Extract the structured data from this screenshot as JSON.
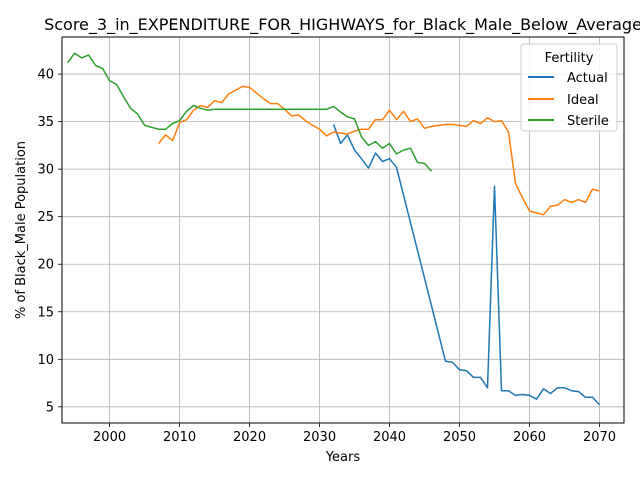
{
  "chart_data": {
    "type": "line",
    "title": "Score_3_in_EXPENDITURE_FOR_HIGHWAYS_for_Black_Male_Below_Average",
    "xlabel": "Years",
    "ylabel": "% of Black_Male Population",
    "xlim": [
      1993.2,
      2073.5
    ],
    "ylim": [
      3.3,
      43.9
    ],
    "xticks": [
      2000,
      2010,
      2020,
      2030,
      2040,
      2050,
      2060,
      2070
    ],
    "yticks": [
      5,
      10,
      15,
      20,
      25,
      30,
      35,
      40
    ],
    "grid": true,
    "legend": {
      "title": "Fertility",
      "placement": "top-right"
    },
    "colors": {
      "Actual": "#1f77b4",
      "Ideal": "#ff7f0e",
      "Sterile": "#2ca02c"
    },
    "series": [
      {
        "name": "Actual",
        "points": [
          [
            2032,
            34.7
          ],
          [
            2033,
            32.7
          ],
          [
            2034,
            33.6
          ],
          [
            2035,
            32.0
          ],
          [
            2036,
            31.1
          ],
          [
            2037,
            30.1
          ],
          [
            2038,
            31.7
          ],
          [
            2039,
            30.8
          ],
          [
            2040,
            31.1
          ],
          [
            2041,
            30.2
          ],
          [
            2048,
            9.8
          ],
          [
            2049,
            9.7
          ],
          [
            2050,
            8.9
          ],
          [
            2051,
            8.8
          ],
          [
            2052,
            8.1
          ],
          [
            2053,
            8.1
          ],
          [
            2054,
            7.0
          ],
          [
            2055,
            28.2
          ],
          [
            2056,
            6.7
          ],
          [
            2057,
            6.7
          ],
          [
            2058,
            6.2
          ],
          [
            2059,
            6.3
          ],
          [
            2060,
            6.2
          ],
          [
            2061,
            5.8
          ],
          [
            2062,
            6.9
          ],
          [
            2063,
            6.4
          ],
          [
            2064,
            7.0
          ],
          [
            2065,
            7.0
          ],
          [
            2066,
            6.7
          ],
          [
            2067,
            6.6
          ],
          [
            2068,
            6.0
          ],
          [
            2069,
            6.0
          ],
          [
            2070,
            5.2
          ]
        ]
      },
      {
        "name": "Ideal",
        "points": [
          [
            2007,
            32.7
          ],
          [
            2008,
            33.6
          ],
          [
            2009,
            33.0
          ],
          [
            2010,
            34.9
          ],
          [
            2011,
            35.2
          ],
          [
            2012,
            36.2
          ],
          [
            2013,
            36.7
          ],
          [
            2014,
            36.5
          ],
          [
            2015,
            37.2
          ],
          [
            2016,
            37.0
          ],
          [
            2017,
            37.9
          ],
          [
            2018,
            38.3
          ],
          [
            2019,
            38.7
          ],
          [
            2020,
            38.6
          ],
          [
            2021,
            38.0
          ],
          [
            2022,
            37.4
          ],
          [
            2023,
            36.9
          ],
          [
            2024,
            36.9
          ],
          [
            2025,
            36.3
          ],
          [
            2026,
            35.6
          ],
          [
            2027,
            35.7
          ],
          [
            2028,
            35.1
          ],
          [
            2029,
            34.6
          ],
          [
            2030,
            34.2
          ],
          [
            2031,
            33.5
          ],
          [
            2032,
            33.9
          ],
          [
            2033,
            33.8
          ],
          [
            2034,
            33.7
          ],
          [
            2035,
            34.0
          ],
          [
            2036,
            34.2
          ],
          [
            2037,
            34.2
          ],
          [
            2038,
            35.2
          ],
          [
            2039,
            35.2
          ],
          [
            2040,
            36.2
          ],
          [
            2041,
            35.2
          ],
          [
            2042,
            36.1
          ],
          [
            2043,
            35.0
          ],
          [
            2044,
            35.3
          ],
          [
            2045,
            34.3
          ],
          [
            2046,
            34.5
          ],
          [
            2047,
            34.6
          ],
          [
            2048,
            34.7
          ],
          [
            2049,
            34.7
          ],
          [
            2050,
            34.6
          ],
          [
            2051,
            34.5
          ],
          [
            2052,
            35.1
          ],
          [
            2053,
            34.8
          ],
          [
            2054,
            35.4
          ],
          [
            2055,
            35.0
          ],
          [
            2056,
            35.1
          ],
          [
            2057,
            33.9
          ],
          [
            2058,
            28.5
          ],
          [
            2059,
            27.0
          ],
          [
            2060,
            25.6
          ],
          [
            2061,
            25.4
          ],
          [
            2062,
            25.2
          ],
          [
            2063,
            26.1
          ],
          [
            2064,
            26.2
          ],
          [
            2065,
            26.8
          ],
          [
            2066,
            26.5
          ],
          [
            2067,
            26.8
          ],
          [
            2068,
            26.5
          ],
          [
            2069,
            27.9
          ],
          [
            2070,
            27.7
          ]
        ]
      },
      {
        "name": "Sterile",
        "points": [
          [
            1994,
            41.2
          ],
          [
            1995,
            42.2
          ],
          [
            1996,
            41.7
          ],
          [
            1997,
            42.0
          ],
          [
            1998,
            40.9
          ],
          [
            1999,
            40.6
          ],
          [
            2000,
            39.3
          ],
          [
            2001,
            38.9
          ],
          [
            2002,
            37.6
          ],
          [
            2003,
            36.4
          ],
          [
            2004,
            35.8
          ],
          [
            2005,
            34.6
          ],
          [
            2006,
            34.4
          ],
          [
            2007,
            34.2
          ],
          [
            2008,
            34.2
          ],
          [
            2009,
            34.8
          ],
          [
            2010,
            35.1
          ],
          [
            2011,
            36.1
          ],
          [
            2012,
            36.7
          ],
          [
            2013,
            36.4
          ],
          [
            2014,
            36.2
          ],
          [
            2015,
            36.3
          ],
          [
            2016,
            36.3
          ],
          [
            2017,
            36.3
          ],
          [
            2018,
            36.3
          ],
          [
            2019,
            36.3
          ],
          [
            2020,
            36.3
          ],
          [
            2021,
            36.3
          ],
          [
            2022,
            36.3
          ],
          [
            2023,
            36.3
          ],
          [
            2024,
            36.3
          ],
          [
            2025,
            36.3
          ],
          [
            2026,
            36.3
          ],
          [
            2027,
            36.3
          ],
          [
            2028,
            36.3
          ],
          [
            2029,
            36.3
          ],
          [
            2030,
            36.3
          ],
          [
            2031,
            36.3
          ],
          [
            2032,
            36.6
          ],
          [
            2033,
            36.0
          ],
          [
            2034,
            35.5
          ],
          [
            2035,
            35.3
          ],
          [
            2036,
            33.4
          ],
          [
            2037,
            32.5
          ],
          [
            2038,
            32.9
          ],
          [
            2039,
            32.2
          ],
          [
            2040,
            32.7
          ],
          [
            2041,
            31.6
          ],
          [
            2042,
            32.0
          ],
          [
            2043,
            32.2
          ],
          [
            2044,
            30.7
          ],
          [
            2045,
            30.6
          ],
          [
            2046,
            29.8
          ]
        ]
      }
    ]
  }
}
